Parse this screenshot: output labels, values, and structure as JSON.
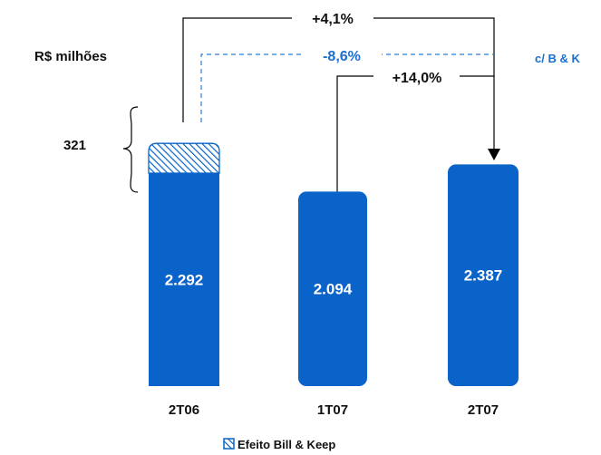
{
  "chart_data": {
    "type": "bar",
    "unit_label": "R$ milhões",
    "categories": [
      "2T06",
      "1T07",
      "2T07"
    ],
    "series": [
      {
        "name": "",
        "values": [
          2292,
          2094,
          2387
        ],
        "value_labels": [
          "2.292",
          "2.094",
          "2.387"
        ],
        "color": "#0A63C9"
      },
      {
        "name": "Efeito Bill & Keep",
        "values": [
          321,
          0,
          0
        ],
        "value_labels": [
          "321",
          "",
          ""
        ],
        "color": "#0A63C9",
        "pattern": "diagonal-hatch"
      }
    ],
    "annotations": {
      "growth_2T06_2T07": "+4,1%",
      "growth_ex_bk": "-8,6%",
      "growth_1T07_2T07": "+14,0%",
      "ex_bk_label": "c/ B & K"
    },
    "legend": {
      "label": "Efeito Bill & Keep",
      "placement": "bottom-center"
    },
    "colors": {
      "bar": "#0A63C9",
      "text": "#111111",
      "accent_text": "#1A6FD0",
      "connector": "#000000"
    },
    "grid": false
  }
}
